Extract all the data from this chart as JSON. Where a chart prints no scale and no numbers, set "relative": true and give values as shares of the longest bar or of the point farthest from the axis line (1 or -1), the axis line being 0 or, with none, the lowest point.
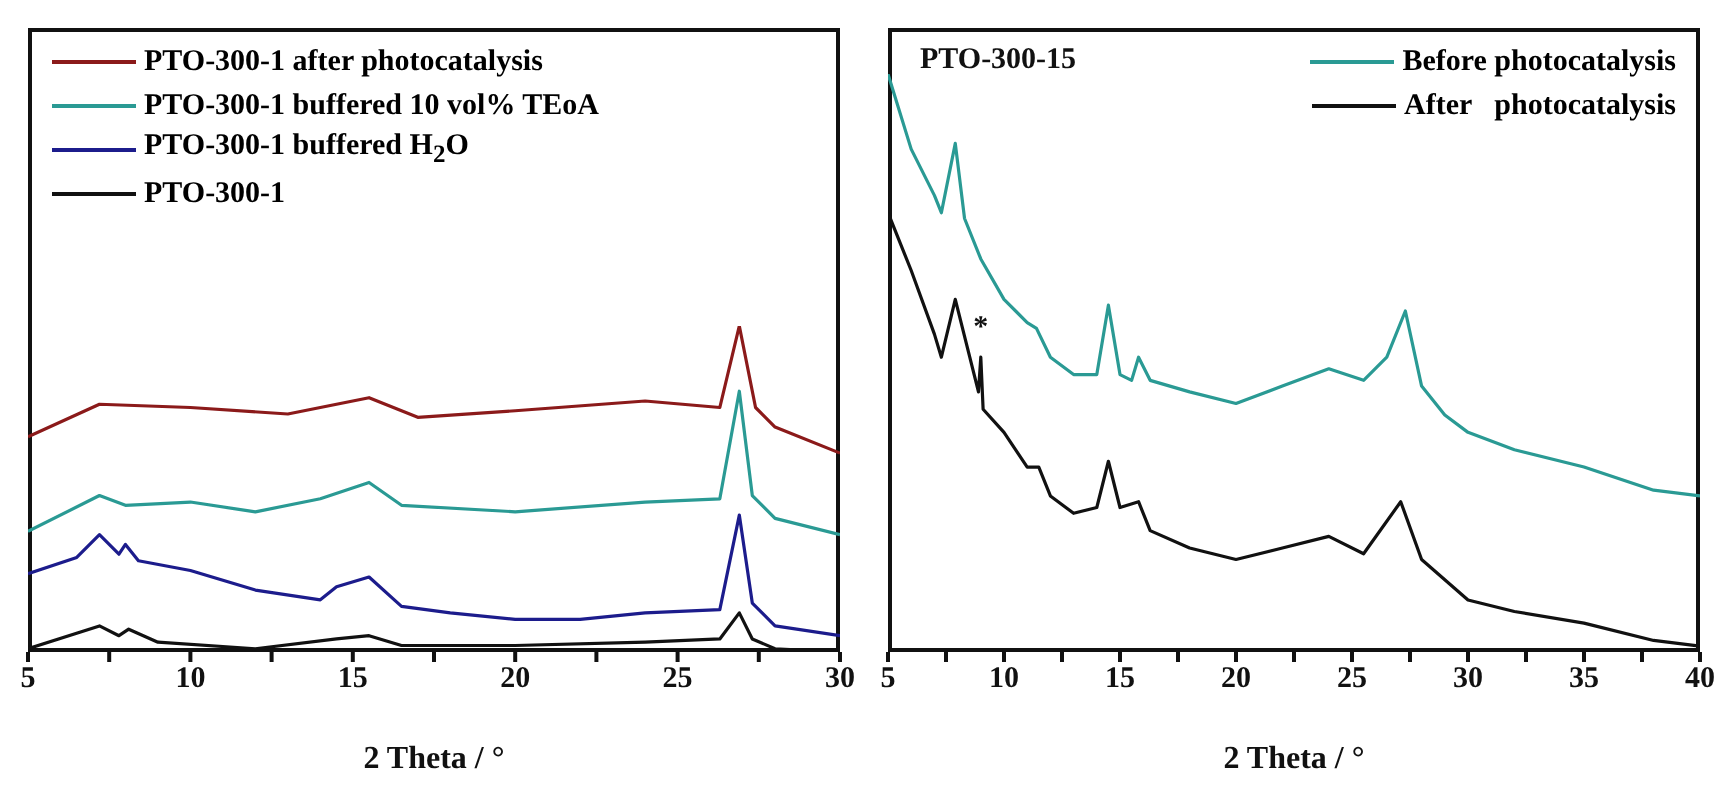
{
  "chart_data": [
    {
      "type": "line",
      "relative": true,
      "xlabel": "2 Theta / °",
      "xlim": [
        5,
        30
      ],
      "xticks": [
        5,
        {
          "value": 7.5,
          "label": null
        },
        10,
        {
          "value": 12.5,
          "label": null
        },
        15,
        {
          "value": 17.5,
          "label": null
        },
        20,
        {
          "value": 22.5,
          "label": null
        },
        25,
        {
          "value": 27.5,
          "label": null
        },
        30
      ],
      "legend": "top left",
      "grid": false,
      "marker": "none",
      "series": [
        {
          "name": "PTO-300-1 after photocatalysis",
          "color": "#8b1a1a",
          "x": [
            5,
            7.2,
            10,
            13,
            15.5,
            17,
            20,
            24,
            26.3,
            26.9,
            27.4,
            28,
            30
          ],
          "values": [
            0.66,
            0.76,
            0.75,
            0.73,
            0.78,
            0.72,
            0.74,
            0.77,
            0.75,
            1.0,
            0.75,
            0.69,
            0.61
          ]
        },
        {
          "name": "PTO-300-1 buffered 10 vol% TEoA",
          "color": "#2a9a94",
          "x": [
            5,
            7.2,
            8,
            10,
            12,
            14,
            15.5,
            16.5,
            20,
            24,
            26.3,
            26.9,
            27.3,
            28,
            30
          ],
          "values": [
            0.37,
            0.48,
            0.45,
            0.46,
            0.43,
            0.47,
            0.52,
            0.45,
            0.43,
            0.46,
            0.47,
            0.8,
            0.48,
            0.41,
            0.36
          ]
        },
        {
          "name": "PTO-300-1 buffered H$_{2}$O",
          "color": "#1c1c8c",
          "x": [
            5,
            6.5,
            7.2,
            7.8,
            8,
            8.4,
            10,
            12,
            14,
            14.5,
            15.5,
            16.5,
            18,
            20,
            22,
            24,
            26.3,
            26.9,
            27.3,
            28,
            30
          ],
          "values": [
            0.24,
            0.29,
            0.36,
            0.3,
            0.33,
            0.28,
            0.25,
            0.19,
            0.16,
            0.2,
            0.23,
            0.14,
            0.12,
            0.1,
            0.1,
            0.12,
            0.13,
            0.42,
            0.15,
            0.08,
            0.05
          ]
        },
        {
          "name": "PTO-300-1",
          "color": "#111111",
          "x": [
            5,
            7.2,
            7.8,
            8.1,
            9,
            12,
            14.5,
            15.5,
            16.5,
            20,
            24,
            26.3,
            26.9,
            27.3,
            28,
            30
          ],
          "values": [
            0.01,
            0.08,
            0.05,
            0.07,
            0.03,
            0.01,
            0.04,
            0.05,
            0.02,
            0.02,
            0.03,
            0.04,
            0.12,
            0.04,
            0.01,
            0.0
          ]
        }
      ]
    },
    {
      "type": "line",
      "relative": true,
      "xlabel": "2 Theta / °",
      "xlim": [
        5,
        40
      ],
      "xticks": [
        5,
        {
          "value": 7.5,
          "label": null
        },
        10,
        {
          "value": 12.5,
          "label": null
        },
        15,
        {
          "value": 17.5,
          "label": null
        },
        20,
        {
          "value": 22.5,
          "label": null
        },
        25,
        {
          "value": 27.5,
          "label": null
        },
        30,
        {
          "value": 32.5,
          "label": null
        },
        35,
        {
          "value": 37.5,
          "label": null
        },
        40
      ],
      "legend": "top right",
      "grid": false,
      "marker": "none",
      "annotations": [
        "PTO-300-15",
        {
          "text": "*",
          "x": 9,
          "y": 0.53
        }
      ],
      "series": [
        {
          "name": "Before photocatalysis",
          "color": "#2a9a94",
          "x": [
            5,
            6,
            7,
            7.3,
            7.9,
            8.3,
            9,
            10,
            11,
            11.4,
            12,
            13,
            14,
            14.5,
            15,
            15.5,
            15.8,
            16.3,
            18,
            20,
            22,
            24,
            25.5,
            26.5,
            27.3,
            28,
            29,
            30,
            32,
            35,
            38,
            40
          ],
          "values": [
            1.0,
            0.87,
            0.79,
            0.76,
            0.88,
            0.75,
            0.68,
            0.61,
            0.57,
            0.56,
            0.51,
            0.48,
            0.48,
            0.6,
            0.48,
            0.47,
            0.51,
            0.47,
            0.45,
            0.43,
            0.46,
            0.49,
            0.47,
            0.51,
            0.59,
            0.46,
            0.41,
            0.38,
            0.35,
            0.32,
            0.28,
            0.27
          ]
        },
        {
          "name": "After   photocatalysis",
          "color": "#111111",
          "x": [
            5,
            6,
            7,
            7.3,
            7.9,
            8.4,
            8.9,
            9,
            9.1,
            10,
            11,
            11.5,
            12,
            13,
            14,
            14.5,
            15,
            15.8,
            16.3,
            18,
            20,
            22,
            24,
            25.5,
            27.1,
            28,
            30,
            32,
            35,
            38,
            40
          ],
          "values": [
            0.76,
            0.66,
            0.55,
            0.51,
            0.61,
            0.53,
            0.45,
            0.51,
            0.42,
            0.38,
            0.32,
            0.32,
            0.27,
            0.24,
            0.25,
            0.33,
            0.25,
            0.26,
            0.21,
            0.18,
            0.16,
            0.18,
            0.2,
            0.17,
            0.26,
            0.16,
            0.09,
            0.07,
            0.05,
            0.02,
            0.01
          ]
        }
      ]
    }
  ]
}
